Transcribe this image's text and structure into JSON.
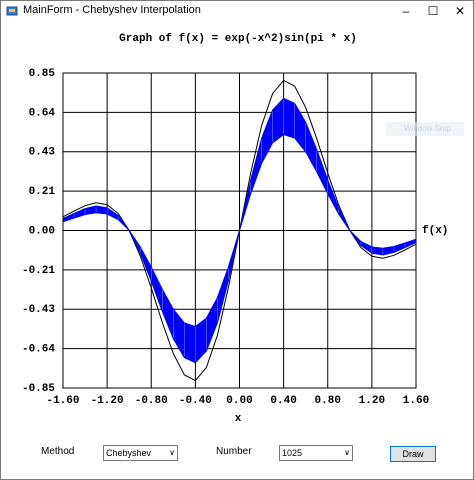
{
  "window": {
    "title": "MainForm - Chebyshev Interpolation"
  },
  "chart_data": {
    "type": "line",
    "title": "Graph of f(x) = exp(-x^2)sin(pi * x)",
    "x_label": "x",
    "y_label": "f(x)",
    "x": [
      -1.6,
      -1.5,
      -1.4,
      -1.3,
      -1.2,
      -1.1,
      -1.0,
      -0.9,
      -0.8,
      -0.7,
      -0.6,
      -0.5,
      -0.4,
      -0.3,
      -0.2,
      -0.1,
      0,
      0.1,
      0.2,
      0.3,
      0.4,
      0.5,
      0.6,
      0.7,
      0.8,
      0.9,
      1.0,
      1.1,
      1.2,
      1.3,
      1.4,
      1.5,
      1.6
    ],
    "series": [
      {
        "color": "#000000",
        "values": [
          0.074,
          0.105,
          0.134,
          0.15,
          0.139,
          0.092,
          0,
          -0.137,
          -0.31,
          -0.496,
          -0.664,
          -0.779,
          -0.81,
          -0.739,
          -0.565,
          -0.306,
          0,
          0.306,
          0.565,
          0.739,
          0.81,
          0.779,
          0.664,
          0.496,
          0.31,
          0.137,
          0,
          -0.092,
          -0.139,
          -0.15,
          -0.134,
          -0.105,
          -0.074
        ]
      },
      {
        "color": "#0000ff",
        "values": [
          0.065,
          0.092,
          0.118,
          0.132,
          0.122,
          0.081,
          0,
          -0.121,
          -0.273,
          -0.436,
          -0.584,
          -0.686,
          -0.713,
          -0.65,
          -0.497,
          -0.269,
          0,
          0.269,
          0.497,
          0.65,
          0.713,
          0.686,
          0.584,
          0.436,
          0.273,
          0.121,
          0,
          -0.081,
          -0.122,
          -0.132,
          -0.118,
          -0.092,
          -0.065
        ]
      },
      {
        "color": "#0000ff",
        "values": [
          0.047,
          0.067,
          0.086,
          0.096,
          0.089,
          0.059,
          0,
          -0.088,
          -0.198,
          -0.317,
          -0.425,
          -0.499,
          -0.518,
          -0.473,
          -0.362,
          -0.196,
          0,
          0.196,
          0.362,
          0.473,
          0.518,
          0.499,
          0.425,
          0.317,
          0.198,
          0.088,
          0,
          -0.059,
          -0.089,
          -0.096,
          -0.086,
          -0.067,
          -0.047
        ]
      }
    ],
    "xlim": [
      -1.6,
      1.6
    ],
    "ylim": [
      -0.85,
      0.85
    ],
    "xticks": [
      {
        "value": -1.6,
        "label": "-1.60"
      },
      {
        "value": -1.2,
        "label": "-1.20"
      },
      {
        "value": -0.8,
        "label": "-0.80"
      },
      {
        "value": -0.4,
        "label": "-0.40"
      },
      {
        "value": 0,
        "label": "0.00"
      },
      {
        "value": 0.4,
        "label": "0.40"
      },
      {
        "value": 0.8,
        "label": "0.80"
      },
      {
        "value": 1.2,
        "label": "1.20"
      },
      {
        "value": 1.6,
        "label": "1.60"
      }
    ],
    "yticks": [
      {
        "value": -0.85,
        "label": "-0.85"
      },
      {
        "value": -0.6375,
        "label": "-0.64"
      },
      {
        "value": -0.425,
        "label": "-0.43"
      },
      {
        "value": -0.2125,
        "label": "-0.21"
      },
      {
        "value": 0,
        "label": "0.00"
      },
      {
        "value": 0.2125,
        "label": "0.21"
      },
      {
        "value": 0.425,
        "label": "0.43"
      },
      {
        "value": 0.6375,
        "label": "0.64"
      },
      {
        "value": 0.85,
        "label": "0.85"
      }
    ],
    "grid": true
  },
  "controls": {
    "method_label": "Method",
    "method_value": "Chebyshev",
    "number_label": "Number",
    "number_value": "1025",
    "draw_button": "Draw"
  },
  "overlay": "Window Snip"
}
